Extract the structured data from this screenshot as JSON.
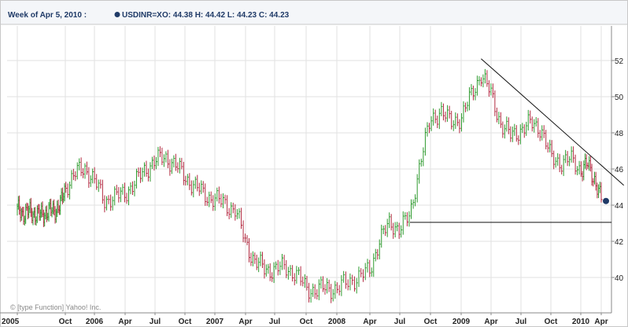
{
  "header": {
    "week": "Week of Apr 5, 2010 :",
    "symbol": "USDINR=X",
    "ohlc": "O: 44.38  H: 44.42  L: 44.23  C: 44.23",
    "marker_color": "#1f3a67"
  },
  "credit": "© [type Function] Yahoo! Inc.",
  "colors": {
    "up": "#2e9a2e",
    "down": "#b22a40",
    "grid": "#e2e2e2",
    "axis": "#888888"
  },
  "chart_data": {
    "type": "line",
    "title": "",
    "xlabel": "",
    "ylabel": "",
    "x_tick_labels": [
      "2005",
      "Oct",
      "2006",
      "Apr",
      "Jul",
      "Oct",
      "2007",
      "Apr",
      "Jul",
      "Oct",
      "2008",
      "Apr",
      "Jul",
      "Oct",
      "2009",
      "Apr",
      "Jul",
      "Oct",
      "2010",
      "Apr"
    ],
    "y_ticks": [
      40,
      42,
      44,
      46,
      48,
      50,
      52
    ],
    "ylim": [
      38.5,
      53.5
    ],
    "grid": true,
    "series": [
      {
        "values": [
          [
            "2005-01",
            43.7
          ],
          [
            "2005-02",
            43.6
          ],
          [
            "2005-03",
            43.6
          ],
          [
            "2005-04",
            43.6
          ],
          [
            "2005-05",
            43.4
          ],
          [
            "2005-06",
            43.6
          ],
          [
            "2005-07",
            43.6
          ],
          [
            "2005-08",
            43.8
          ],
          [
            "2005-09",
            43.9
          ],
          [
            "2005-10",
            45.0
          ],
          [
            "2005-11",
            45.7
          ],
          [
            "2005-12",
            46.1
          ],
          [
            "2006-01",
            45.3
          ],
          [
            "2006-02",
            44.3
          ],
          [
            "2006-03",
            44.4
          ],
          [
            "2006-04",
            44.7
          ],
          [
            "2006-05",
            45.2
          ],
          [
            "2006-06",
            46.0
          ],
          [
            "2006-07",
            46.4
          ],
          [
            "2006-08",
            46.7
          ],
          [
            "2006-09",
            46.2
          ],
          [
            "2006-10",
            45.6
          ],
          [
            "2006-11",
            45.0
          ],
          [
            "2006-12",
            44.6
          ],
          [
            "2007-01",
            44.3
          ],
          [
            "2007-02",
            44.1
          ],
          [
            "2007-03",
            43.7
          ],
          [
            "2007-04",
            42.0
          ],
          [
            "2007-05",
            40.8
          ],
          [
            "2007-06",
            40.5
          ],
          [
            "2007-07",
            40.4
          ],
          [
            "2007-08",
            40.6
          ],
          [
            "2007-09",
            40.2
          ],
          [
            "2007-10",
            39.4
          ],
          [
            "2007-11",
            39.3
          ],
          [
            "2007-12",
            39.4
          ],
          [
            "2008-01",
            39.4
          ],
          [
            "2008-02",
            39.7
          ],
          [
            "2008-03",
            40.1
          ],
          [
            "2008-04",
            40.3
          ],
          [
            "2008-05",
            42.2
          ],
          [
            "2008-06",
            42.9
          ],
          [
            "2008-07",
            42.8
          ],
          [
            "2008-08",
            43.3
          ],
          [
            "2008-09",
            46.5
          ],
          [
            "2008-10",
            48.6
          ],
          [
            "2008-11",
            49.3
          ],
          [
            "2008-12",
            48.5
          ],
          [
            "2009-01",
            48.9
          ],
          [
            "2009-02",
            50.0
          ],
          [
            "2009-03",
            51.3
          ],
          [
            "2009-04",
            50.1
          ],
          [
            "2009-05",
            48.5
          ],
          [
            "2009-06",
            47.8
          ],
          [
            "2009-07",
            48.2
          ],
          [
            "2009-08",
            48.5
          ],
          [
            "2009-09",
            48.3
          ],
          [
            "2009-10",
            46.6
          ],
          [
            "2009-11",
            46.4
          ],
          [
            "2009-12",
            46.5
          ],
          [
            "2010-01",
            46.0
          ],
          [
            "2010-02",
            46.2
          ],
          [
            "2010-03",
            45.5
          ],
          [
            "2010-04",
            44.23
          ]
        ]
      }
    ],
    "annotations": [
      {
        "type": "trendline",
        "from": [
          "2009-03",
          52.1
        ],
        "to": [
          "2010-05",
          45.1
        ]
      },
      {
        "type": "hline",
        "y": 43.05,
        "from": "2008-08",
        "to": "2010-05"
      }
    ],
    "last_point": [
      "2010-04",
      44.23
    ]
  }
}
